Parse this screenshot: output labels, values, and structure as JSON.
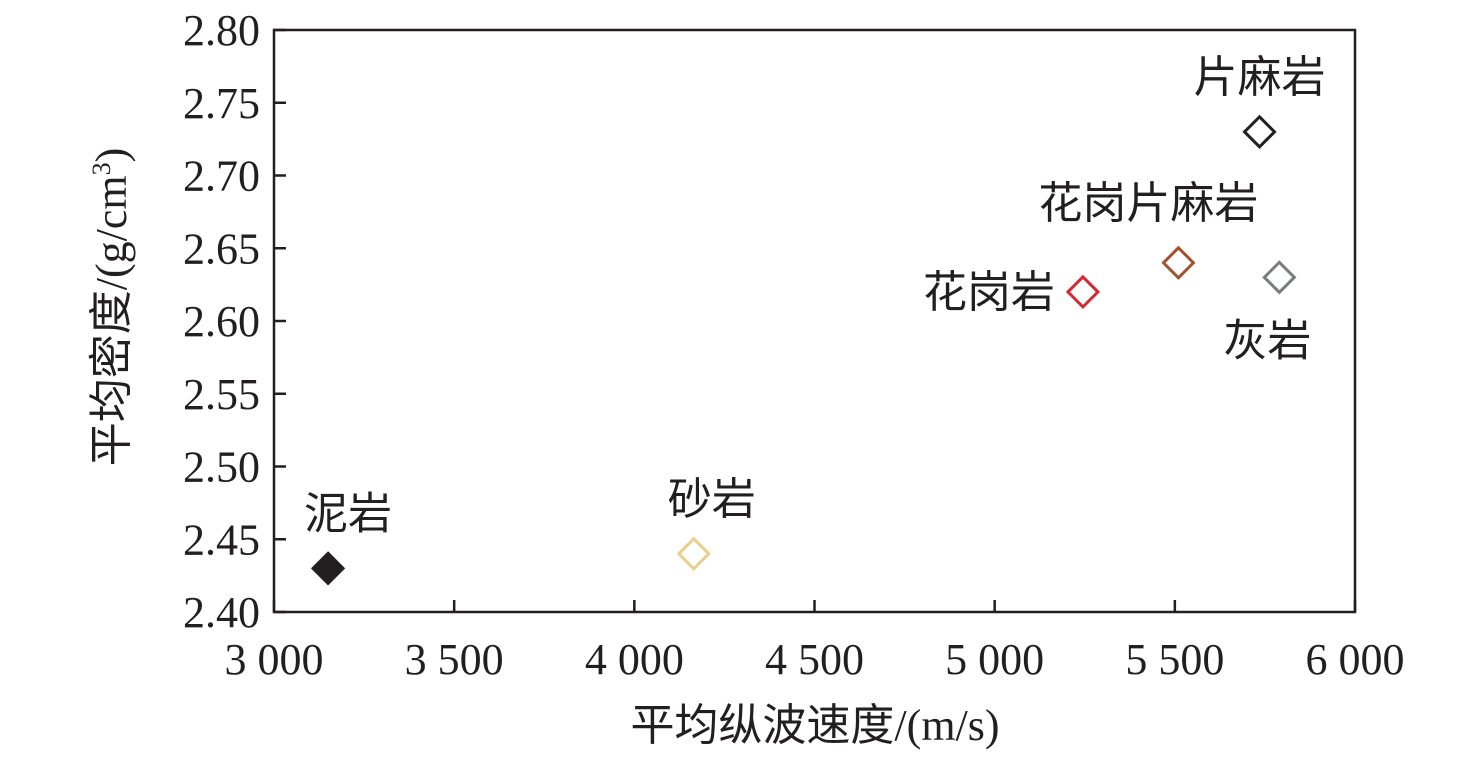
{
  "chart_data": {
    "type": "scatter",
    "xlabel": "平均纵波速度/(m/s)",
    "ylabel_main": "平均密度/(g/cm",
    "ylabel_sup": "3",
    "ylabel_close": ")",
    "xlim": [
      3000,
      6000
    ],
    "ylim": [
      2.4,
      2.8
    ],
    "x_ticks": [
      3000,
      3500,
      4000,
      4500,
      5000,
      5500,
      6000
    ],
    "x_tick_labels": [
      "3 000",
      "3 500",
      "4 000",
      "4 500",
      "5 000",
      "5 500",
      "6 000"
    ],
    "y_ticks": [
      2.4,
      2.45,
      2.5,
      2.55,
      2.6,
      2.65,
      2.7,
      2.75,
      2.8
    ],
    "y_tick_labels": [
      "2.40",
      "2.45",
      "2.50",
      "2.55",
      "2.60",
      "2.65",
      "2.70",
      "2.75",
      "2.80"
    ],
    "grid": false,
    "points": [
      {
        "label": "泥岩",
        "x": 3150,
        "y": 2.43,
        "color": "#231f20",
        "filled": true,
        "label_pos": "above"
      },
      {
        "label": "砂岩",
        "x": 4165,
        "y": 2.44,
        "color": "#e8d08a",
        "filled": false,
        "label_pos": "above"
      },
      {
        "label": "花岗岩",
        "x": 5245,
        "y": 2.62,
        "color": "#d7282f",
        "filled": false,
        "label_pos": "left"
      },
      {
        "label": "花岗片麻岩",
        "x": 5510,
        "y": 2.64,
        "color": "#a0522d",
        "filled": false,
        "label_pos": "above"
      },
      {
        "label": "灰岩",
        "x": 5790,
        "y": 2.63,
        "color": "#7a7d80",
        "filled": false,
        "label_pos": "below"
      },
      {
        "label": "片麻岩",
        "x": 5735,
        "y": 2.73,
        "color": "#231f20",
        "filled": false,
        "label_pos": "above"
      }
    ]
  }
}
